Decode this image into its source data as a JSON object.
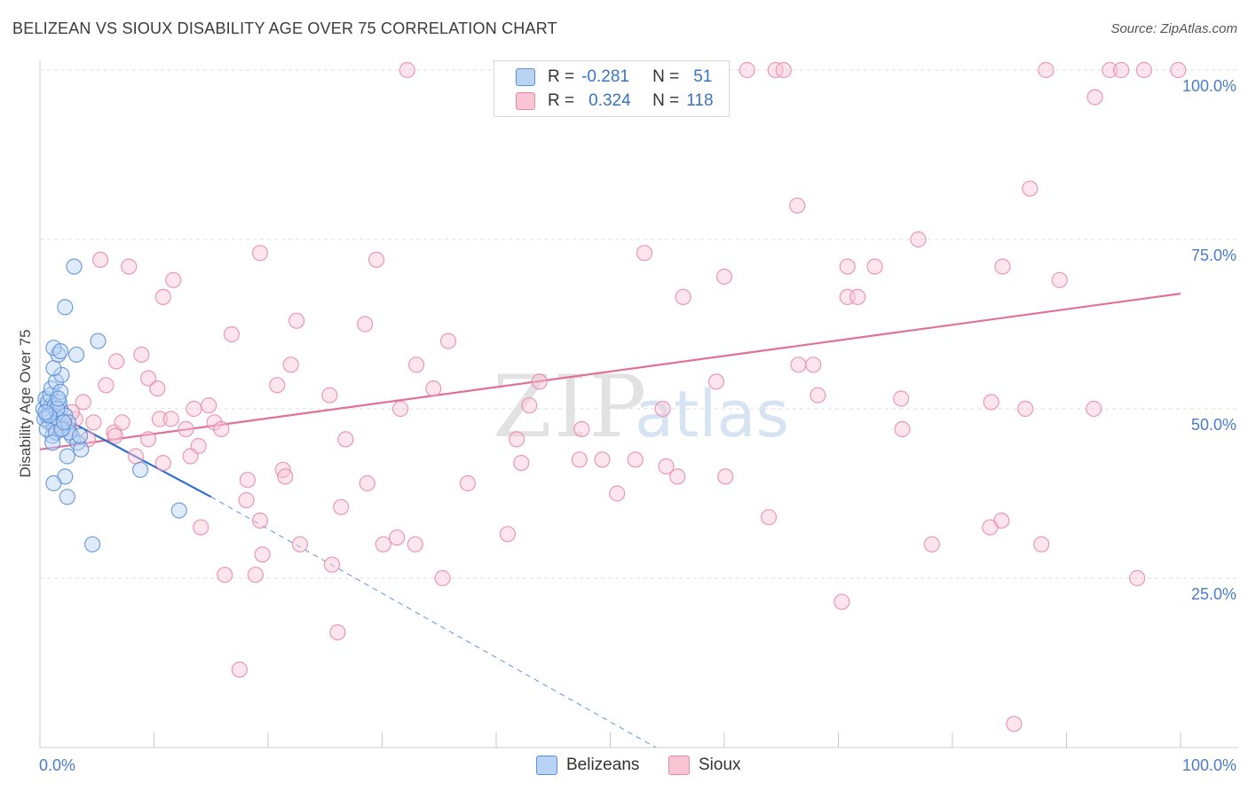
{
  "title": "BELIZEAN VS SIOUX DISABILITY AGE OVER 75 CORRELATION CHART",
  "source": "Source: ZipAtlas.com",
  "legend": {
    "r_label": "R =",
    "n_label": "N =",
    "belizeans": {
      "r": "-0.281",
      "n": "51"
    },
    "sioux": {
      "r": "0.324",
      "n": "118"
    }
  },
  "bottom_legend": {
    "belizeans": "Belizeans",
    "sioux": "Sioux"
  },
  "colors": {
    "belizeans_fill": "#b9d3f5",
    "belizeans_stroke": "#5b8fd6",
    "belizeans_line": "#2f6fd0",
    "sioux_fill": "#f8c5d4",
    "sioux_stroke": "#e58aa6",
    "sioux_line": "#e0719a",
    "axis_text": "#4a7cc9"
  },
  "chart_data": {
    "type": "scatter",
    "title": "BELIZEAN VS SIOUX DISABILITY AGE OVER 75 CORRELATION CHART",
    "xlabel": "",
    "ylabel": "Disability Age Over 75",
    "xlim": [
      0,
      100
    ],
    "ylim": [
      0,
      102
    ],
    "x_tick_labels": [
      "0.0%",
      "100.0%"
    ],
    "y_tick_labels": [
      "25.0%",
      "50.0%",
      "75.0%",
      "100.0%"
    ],
    "y_ticks": [
      25,
      50,
      75,
      100
    ],
    "grid": true,
    "watermark": "ZIPatlas",
    "series": [
      {
        "name": "Belizeans",
        "r": -0.281,
        "n": 51,
        "trend": {
          "x0": 0,
          "y0": 50.5,
          "x1": 15,
          "y1": 37,
          "dashed_to_x": 54,
          "dashed_to_y": 0
        },
        "points": [
          [
            0.3,
            50
          ],
          [
            0.5,
            51.5
          ],
          [
            0.6,
            49
          ],
          [
            0.8,
            48
          ],
          [
            1.0,
            50.5
          ],
          [
            1.2,
            47.5
          ],
          [
            0.4,
            48.5
          ],
          [
            0.7,
            51
          ],
          [
            1.5,
            49.5
          ],
          [
            1.8,
            50
          ],
          [
            0.9,
            52
          ],
          [
            1.1,
            46
          ],
          [
            1.6,
            48.5
          ],
          [
            2.0,
            47
          ],
          [
            1.3,
            50.5
          ],
          [
            1.7,
            51
          ],
          [
            2.2,
            49
          ],
          [
            0.6,
            47
          ],
          [
            1.0,
            53
          ],
          [
            1.4,
            54
          ],
          [
            1.9,
            55
          ],
          [
            1.2,
            56
          ],
          [
            1.6,
            58
          ],
          [
            2.5,
            48
          ],
          [
            2.8,
            46
          ],
          [
            3.3,
            45
          ],
          [
            3.6,
            44
          ],
          [
            2.4,
            43
          ],
          [
            1.2,
            59
          ],
          [
            1.8,
            58.5
          ],
          [
            3.2,
            58
          ],
          [
            5.1,
            60
          ],
          [
            2.2,
            65
          ],
          [
            3.0,
            71
          ],
          [
            1.8,
            52.5
          ],
          [
            1.5,
            50
          ],
          [
            0.8,
            49
          ],
          [
            1.4,
            46.5
          ],
          [
            2.6,
            46.5
          ],
          [
            3.5,
            46
          ],
          [
            2.2,
            40
          ],
          [
            1.2,
            39
          ],
          [
            2.4,
            37
          ],
          [
            8.8,
            41
          ],
          [
            12.2,
            35
          ],
          [
            4.6,
            30
          ],
          [
            1.9,
            47
          ],
          [
            2.1,
            48
          ],
          [
            1.1,
            45
          ],
          [
            0.5,
            49.5
          ],
          [
            1.6,
            51.5
          ]
        ]
      },
      {
        "name": "Sioux",
        "r": 0.324,
        "n": 118,
        "trend": {
          "x0": 0,
          "y0": 44,
          "x1": 100,
          "y1": 67
        },
        "points": [
          [
            32.2,
            100
          ],
          [
            62,
            100
          ],
          [
            64.5,
            100
          ],
          [
            65.2,
            100
          ],
          [
            88.2,
            100
          ],
          [
            93.8,
            100
          ],
          [
            94.8,
            100
          ],
          [
            96.8,
            100
          ],
          [
            99.8,
            100
          ],
          [
            92.5,
            96
          ],
          [
            86.8,
            82.5
          ],
          [
            66.4,
            80
          ],
          [
            77,
            75
          ],
          [
            53,
            73
          ],
          [
            60,
            69.5
          ],
          [
            70.8,
            71
          ],
          [
            73.2,
            71
          ],
          [
            84.4,
            71
          ],
          [
            89.4,
            69
          ],
          [
            70.8,
            66.5
          ],
          [
            56.4,
            66.5
          ],
          [
            71.7,
            66.5
          ],
          [
            5.3,
            72
          ],
          [
            7.8,
            71
          ],
          [
            19.3,
            73
          ],
          [
            29.5,
            72
          ],
          [
            11.7,
            69
          ],
          [
            10.8,
            66.5
          ],
          [
            22.5,
            63
          ],
          [
            28.5,
            62.5
          ],
          [
            16.8,
            61
          ],
          [
            35.8,
            60
          ],
          [
            8.9,
            58
          ],
          [
            6.7,
            57
          ],
          [
            22,
            56.5
          ],
          [
            33,
            56.5
          ],
          [
            66.5,
            56.5
          ],
          [
            67.8,
            56.5
          ],
          [
            9.5,
            54.5
          ],
          [
            5.8,
            53.5
          ],
          [
            10.3,
            53
          ],
          [
            20.8,
            53.5
          ],
          [
            34.5,
            53
          ],
          [
            43.8,
            54
          ],
          [
            59.3,
            54
          ],
          [
            25.4,
            52
          ],
          [
            68.2,
            52
          ],
          [
            75.5,
            51.5
          ],
          [
            83.4,
            51
          ],
          [
            3.8,
            51
          ],
          [
            14.8,
            50.5
          ],
          [
            31.6,
            50
          ],
          [
            42.9,
            50.5
          ],
          [
            54.6,
            50
          ],
          [
            86.4,
            50
          ],
          [
            92.4,
            50
          ],
          [
            1.8,
            48.5
          ],
          [
            3.1,
            48.5
          ],
          [
            4.7,
            48
          ],
          [
            10.5,
            48.5
          ],
          [
            11.5,
            48.5
          ],
          [
            15.3,
            48
          ],
          [
            15.9,
            47
          ],
          [
            12.8,
            47
          ],
          [
            47.5,
            47
          ],
          [
            75.6,
            47
          ],
          [
            1.3,
            47.5
          ],
          [
            2.5,
            47
          ],
          [
            4.2,
            45.5
          ],
          [
            6.5,
            46.5
          ],
          [
            9.5,
            45.5
          ],
          [
            26.8,
            45.5
          ],
          [
            41.8,
            45.5
          ],
          [
            13.9,
            44.5
          ],
          [
            8.4,
            43
          ],
          [
            13.2,
            43
          ],
          [
            10.8,
            42
          ],
          [
            47.3,
            42.5
          ],
          [
            52.2,
            42.5
          ],
          [
            42.2,
            42
          ],
          [
            49.3,
            42.5
          ],
          [
            54.9,
            41.5
          ],
          [
            21.3,
            41
          ],
          [
            21.5,
            40
          ],
          [
            18.2,
            39.5
          ],
          [
            37.5,
            39
          ],
          [
            28.7,
            39
          ],
          [
            55.9,
            40
          ],
          [
            60.1,
            40
          ],
          [
            50.6,
            37.5
          ],
          [
            18.1,
            36.5
          ],
          [
            26.4,
            35.5
          ],
          [
            63.9,
            34
          ],
          [
            19.3,
            33.5
          ],
          [
            84.3,
            33.5
          ],
          [
            83.3,
            32.5
          ],
          [
            14.1,
            32.5
          ],
          [
            41,
            31.5
          ],
          [
            31.3,
            31
          ],
          [
            22.8,
            30
          ],
          [
            30.1,
            30
          ],
          [
            32.9,
            30
          ],
          [
            78.2,
            30
          ],
          [
            87.8,
            30
          ],
          [
            19.5,
            28.5
          ],
          [
            25.6,
            27
          ],
          [
            16.2,
            25.5
          ],
          [
            18.9,
            25.5
          ],
          [
            35.3,
            25
          ],
          [
            96.2,
            25
          ],
          [
            70.3,
            21.5
          ],
          [
            26.1,
            17
          ],
          [
            17.5,
            11.5
          ],
          [
            85.4,
            3.5
          ],
          [
            6.6,
            46
          ],
          [
            2.8,
            49.5
          ],
          [
            7.2,
            48
          ],
          [
            13.5,
            50
          ]
        ]
      }
    ]
  }
}
